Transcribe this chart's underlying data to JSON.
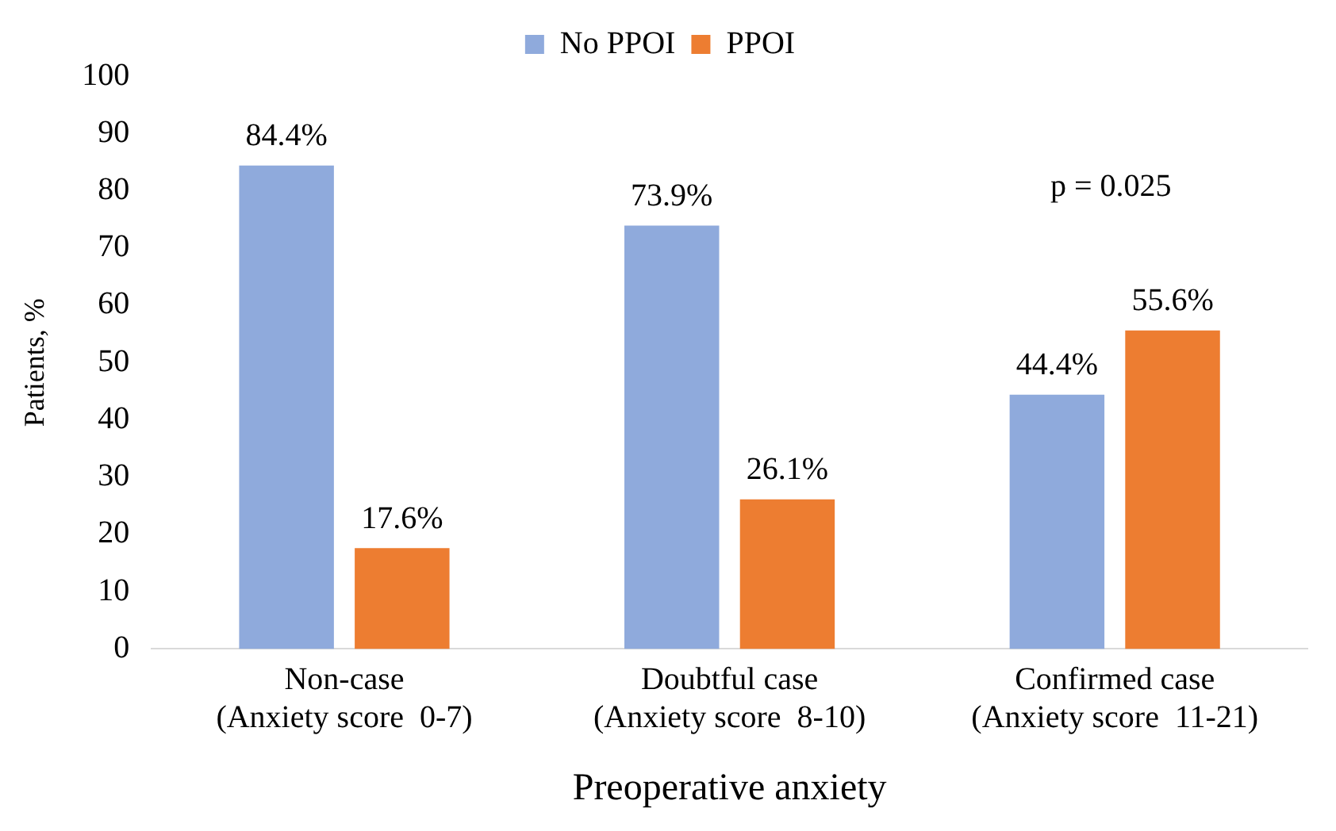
{
  "chart_data": {
    "type": "bar",
    "xlabel": "Preoperative anxiety",
    "ylabel": "Patients, %",
    "categories": [
      "Non-case\n(Anxiety score  0-7)",
      "Doubtful case\n(Anxiety score  8-10)",
      "Confirmed case\n(Anxiety score  11-21)"
    ],
    "series": [
      {
        "name": "No PPOI",
        "color": "#8faadc",
        "values": [
          84.4,
          73.9,
          44.4
        ],
        "value_labels": [
          "84.4%",
          "73.9%",
          "44.4%"
        ]
      },
      {
        "name": "PPOI",
        "color": "#ed7d31",
        "values": [
          17.6,
          26.1,
          55.6
        ],
        "value_labels": [
          "17.6%",
          "26.1%",
          "55.6%"
        ]
      }
    ],
    "ylim": [
      0,
      100
    ],
    "yticks": [
      0,
      10,
      20,
      30,
      40,
      50,
      60,
      70,
      80,
      90,
      100
    ],
    "grid": false,
    "legend": "top",
    "annotations": [
      "p = 0.025"
    ]
  }
}
